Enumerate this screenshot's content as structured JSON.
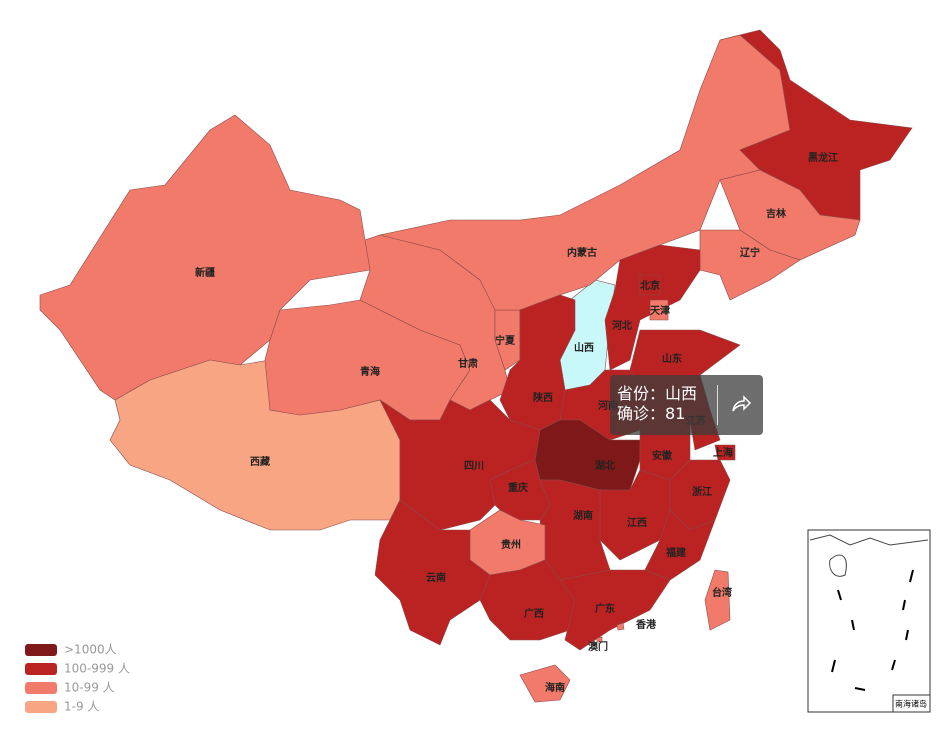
{
  "map": {
    "hover_color": "#c8f8fa",
    "hover_index": 5,
    "provinces": [
      {
        "name": "新疆",
        "color": "#f27a6b"
      },
      {
        "name": "西藏",
        "color": "#f7a583"
      },
      {
        "name": "青海",
        "color": "#f27a6b"
      },
      {
        "name": "甘肃",
        "color": "#f27a6b"
      },
      {
        "name": "宁夏",
        "color": "#f27a6b"
      },
      {
        "name": "山西",
        "color": "#f27a6b"
      },
      {
        "name": "内蒙古",
        "color": "#f27a6b"
      },
      {
        "name": "黑龙江",
        "color": "#bb2222"
      },
      {
        "name": "吉林",
        "color": "#f27a6b"
      },
      {
        "name": "辽宁",
        "color": "#f27a6b"
      },
      {
        "name": "河北",
        "color": "#bb2222"
      },
      {
        "name": "北京",
        "color": "#bb2222"
      },
      {
        "name": "天津",
        "color": "#f27a6b"
      },
      {
        "name": "山东",
        "color": "#bb2222"
      },
      {
        "name": "陕西",
        "color": "#bb2222"
      },
      {
        "name": "河南",
        "color": "#bb2222"
      },
      {
        "name": "湖北",
        "color": "#7f1818"
      },
      {
        "name": "安徽",
        "color": "#bb2222"
      },
      {
        "name": "江苏",
        "color": "#bb2222"
      },
      {
        "name": "上海",
        "color": "#bb2222"
      },
      {
        "name": "浙江",
        "color": "#bb2222"
      },
      {
        "name": "江西",
        "color": "#bb2222"
      },
      {
        "name": "福建",
        "color": "#bb2222"
      },
      {
        "name": "湖南",
        "color": "#bb2222"
      },
      {
        "name": "重庆",
        "color": "#bb2222"
      },
      {
        "name": "四川",
        "color": "#bb2222"
      },
      {
        "name": "贵州",
        "color": "#f27a6b"
      },
      {
        "name": "云南",
        "color": "#bb2222"
      },
      {
        "name": "广西",
        "color": "#bb2222"
      },
      {
        "name": "广东",
        "color": "#bb2222"
      },
      {
        "name": "海南",
        "color": "#f27a6b"
      },
      {
        "name": "台湾",
        "color": "#f27a6b"
      },
      {
        "name": "香港",
        "color": "#f27a6b"
      },
      {
        "name": "澳门",
        "color": "#f27a6b"
      }
    ],
    "legend": [
      {
        "label": ">1000人",
        "color": "#7f1818"
      },
      {
        "label": "100-999 人",
        "color": "#bb2222"
      },
      {
        "label": "10-99 人",
        "color": "#f27a6b"
      },
      {
        "label": "1-9 人",
        "color": "#f7a583"
      }
    ],
    "inset_label": "南海诸岛",
    "tooltip": {
      "lines": [
        "省份：山西",
        "确诊：81"
      ]
    }
  }
}
